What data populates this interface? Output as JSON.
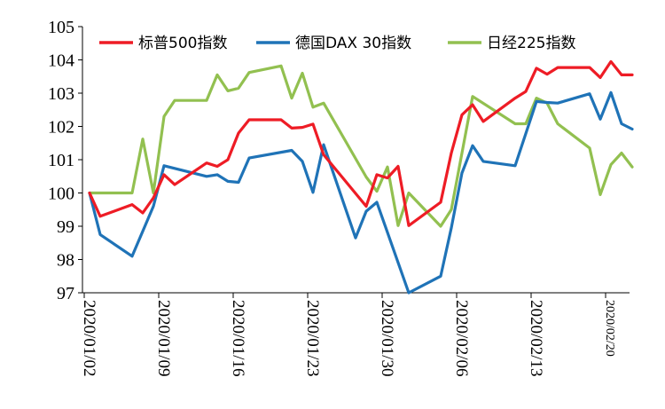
{
  "chart_data": {
    "type": "line",
    "title": "",
    "xlabel": "",
    "ylabel": "",
    "ylim": [
      97,
      105
    ],
    "yticks": [
      97,
      98,
      99,
      100,
      101,
      102,
      103,
      104,
      105
    ],
    "x_tick_labels": [
      "2020/01/02",
      "2020/01/09",
      "2020/01/16",
      "2020/01/23",
      "2020/01/30",
      "2020/02/06",
      "2020/02/13",
      "2020/02/20"
    ],
    "legend_position": "top",
    "series": [
      {
        "name": "标普500指数",
        "color": "#ee1c25",
        "points": [
          [
            0,
            100.0
          ],
          [
            1,
            99.3
          ],
          [
            4,
            99.65
          ],
          [
            5,
            99.4
          ],
          [
            6,
            99.85
          ],
          [
            7,
            100.55
          ],
          [
            8,
            100.25
          ],
          [
            11,
            100.9
          ],
          [
            12,
            100.8
          ],
          [
            13,
            101.0
          ],
          [
            14,
            101.8
          ],
          [
            15,
            102.2
          ],
          [
            18,
            102.2
          ],
          [
            19,
            101.95
          ],
          [
            20,
            101.97
          ],
          [
            21,
            102.07
          ],
          [
            22,
            101.15
          ],
          [
            26,
            99.6
          ],
          [
            27,
            100.55
          ],
          [
            28,
            100.45
          ],
          [
            29,
            100.8
          ],
          [
            30,
            99.02
          ],
          [
            33,
            99.72
          ],
          [
            34,
            101.2
          ],
          [
            35,
            102.35
          ],
          [
            36,
            102.65
          ],
          [
            37,
            102.15
          ],
          [
            40,
            102.85
          ],
          [
            41,
            103.05
          ],
          [
            42,
            103.75
          ],
          [
            43,
            103.57
          ],
          [
            44,
            103.77
          ],
          [
            47,
            103.77
          ],
          [
            48,
            103.47
          ],
          [
            49,
            103.95
          ],
          [
            50,
            103.55
          ],
          [
            51,
            103.55
          ]
        ]
      },
      {
        "name": "德国DAX 30指数",
        "color": "#1f73b7",
        "points": [
          [
            0,
            100.0
          ],
          [
            1,
            98.75
          ],
          [
            4,
            98.1
          ],
          [
            6,
            99.6
          ],
          [
            7,
            100.82
          ],
          [
            11,
            100.5
          ],
          [
            12,
            100.55
          ],
          [
            13,
            100.35
          ],
          [
            14,
            100.32
          ],
          [
            15,
            101.05
          ],
          [
            19,
            101.28
          ],
          [
            20,
            100.95
          ],
          [
            21,
            100.02
          ],
          [
            22,
            101.45
          ],
          [
            25,
            98.65
          ],
          [
            26,
            99.45
          ],
          [
            27,
            99.72
          ],
          [
            30,
            97.0
          ],
          [
            33,
            97.5
          ],
          [
            34,
            98.95
          ],
          [
            35,
            100.6
          ],
          [
            36,
            101.42
          ],
          [
            37,
            100.95
          ],
          [
            40,
            100.82
          ],
          [
            42,
            102.75
          ],
          [
            43,
            102.72
          ],
          [
            44,
            102.7
          ],
          [
            47,
            102.98
          ],
          [
            48,
            102.22
          ],
          [
            49,
            103.02
          ],
          [
            50,
            102.08
          ],
          [
            51,
            101.92
          ]
        ]
      },
      {
        "name": "日经225指数",
        "color": "#92c050",
        "points": [
          [
            0,
            100.0
          ],
          [
            1,
            100.0
          ],
          [
            4,
            100.0
          ],
          [
            5,
            101.62
          ],
          [
            6,
            100.0
          ],
          [
            7,
            102.3
          ],
          [
            8,
            102.78
          ],
          [
            11,
            102.78
          ],
          [
            12,
            103.55
          ],
          [
            13,
            103.07
          ],
          [
            14,
            103.15
          ],
          [
            15,
            103.62
          ],
          [
            18,
            103.82
          ],
          [
            19,
            102.85
          ],
          [
            20,
            103.6
          ],
          [
            21,
            102.58
          ],
          [
            22,
            102.7
          ],
          [
            26,
            100.48
          ],
          [
            27,
            100.05
          ],
          [
            28,
            100.78
          ],
          [
            29,
            99.02
          ],
          [
            30,
            100.0
          ],
          [
            33,
            99.0
          ],
          [
            34,
            99.5
          ],
          [
            36,
            102.9
          ],
          [
            40,
            102.08
          ],
          [
            41,
            102.08
          ],
          [
            42,
            102.85
          ],
          [
            43,
            102.7
          ],
          [
            44,
            102.08
          ],
          [
            47,
            101.35
          ],
          [
            48,
            99.95
          ],
          [
            49,
            100.85
          ],
          [
            50,
            101.2
          ],
          [
            51,
            100.78
          ]
        ]
      }
    ]
  }
}
